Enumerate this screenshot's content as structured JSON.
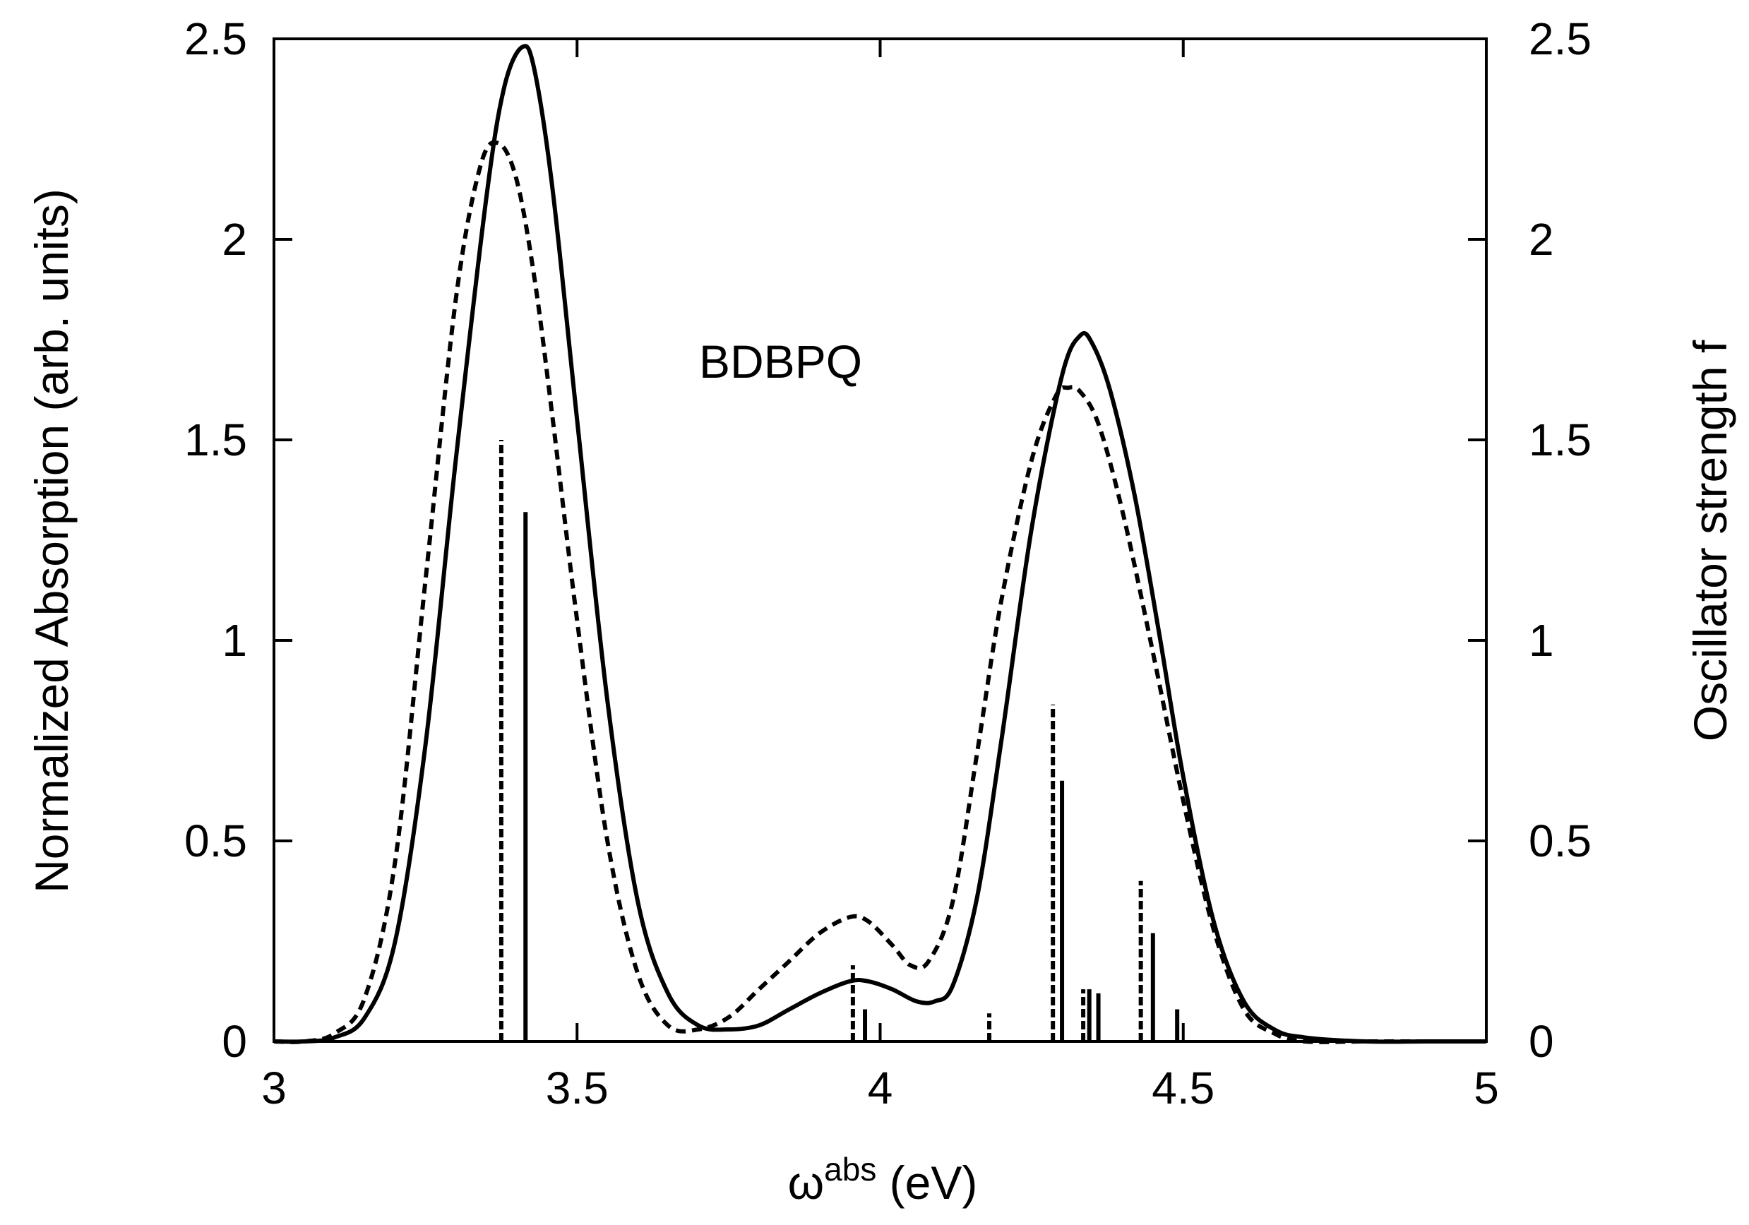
{
  "chart_data": {
    "type": "line",
    "annotation": "BDBPQ",
    "xlabel": {
      "main": "ω",
      "sup": "abs",
      "rest": " (eV)"
    },
    "ylabel": "Normalized Absorption (arb. units)",
    "y2label": "Oscillator strength f",
    "xlim": [
      3,
      5
    ],
    "ylim": [
      0,
      2.5
    ],
    "y2lim": [
      0,
      2.5
    ],
    "xticks": [
      "3",
      "3.5",
      "4",
      "4.5",
      "5"
    ],
    "yticks": [
      "0",
      "0.5",
      "1",
      "1.5",
      "2",
      "2.5"
    ],
    "y2ticks": [
      "0",
      "0.5",
      "1",
      "1.5",
      "2",
      "2.5"
    ],
    "legend": "none",
    "grid": false,
    "series": [
      {
        "style": "solid",
        "x": [
          3.0,
          3.05,
          3.1,
          3.15,
          3.2,
          3.25,
          3.3,
          3.35,
          3.38,
          3.41,
          3.43,
          3.46,
          3.5,
          3.55,
          3.6,
          3.65,
          3.7,
          3.75,
          3.8,
          3.85,
          3.9,
          3.95,
          3.98,
          4.02,
          4.06,
          4.09,
          4.12,
          4.16,
          4.2,
          4.25,
          4.3,
          4.33,
          4.35,
          4.38,
          4.42,
          4.46,
          4.5,
          4.55,
          4.6,
          4.65,
          4.7,
          4.8,
          4.9,
          5.0
        ],
        "y": [
          0.0,
          0.0,
          0.01,
          0.06,
          0.25,
          0.74,
          1.45,
          2.1,
          2.38,
          2.48,
          2.42,
          2.12,
          1.55,
          0.85,
          0.35,
          0.12,
          0.04,
          0.03,
          0.04,
          0.08,
          0.12,
          0.15,
          0.15,
          0.13,
          0.1,
          0.1,
          0.14,
          0.36,
          0.75,
          1.28,
          1.66,
          1.76,
          1.74,
          1.62,
          1.36,
          1.02,
          0.66,
          0.3,
          0.1,
          0.03,
          0.01,
          0.0,
          0.0,
          0.0
        ]
      },
      {
        "style": "dashed",
        "x": [
          3.0,
          3.05,
          3.1,
          3.15,
          3.2,
          3.25,
          3.3,
          3.34,
          3.37,
          3.4,
          3.43,
          3.46,
          3.5,
          3.55,
          3.6,
          3.65,
          3.7,
          3.75,
          3.8,
          3.85,
          3.9,
          3.95,
          3.98,
          4.02,
          4.05,
          4.08,
          4.12,
          4.16,
          4.2,
          4.25,
          4.29,
          4.31,
          4.33,
          4.36,
          4.4,
          4.45,
          4.5,
          4.55,
          4.6,
          4.65,
          4.7,
          4.8,
          4.9,
          5.0
        ],
        "y": [
          0.0,
          0.0,
          0.02,
          0.11,
          0.45,
          1.15,
          1.85,
          2.18,
          2.24,
          2.15,
          1.9,
          1.55,
          1.05,
          0.5,
          0.17,
          0.04,
          0.03,
          0.06,
          0.13,
          0.2,
          0.27,
          0.31,
          0.3,
          0.24,
          0.19,
          0.2,
          0.35,
          0.72,
          1.1,
          1.45,
          1.61,
          1.63,
          1.62,
          1.54,
          1.32,
          0.97,
          0.6,
          0.28,
          0.08,
          0.02,
          0.0,
          0.0,
          0.0,
          0.0
        ]
      }
    ],
    "sticks": [
      {
        "style": "solid",
        "x": [
          3.415,
          3.975,
          4.3,
          4.345,
          4.36,
          4.45,
          4.49
        ],
        "f": [
          1.32,
          0.08,
          0.65,
          0.13,
          0.12,
          0.27,
          0.08
        ]
      },
      {
        "style": "dashed",
        "x": [
          3.375,
          3.955,
          4.18,
          4.285,
          4.335,
          4.43
        ],
        "f": [
          1.5,
          0.19,
          0.07,
          0.84,
          0.13,
          0.4
        ]
      }
    ]
  }
}
